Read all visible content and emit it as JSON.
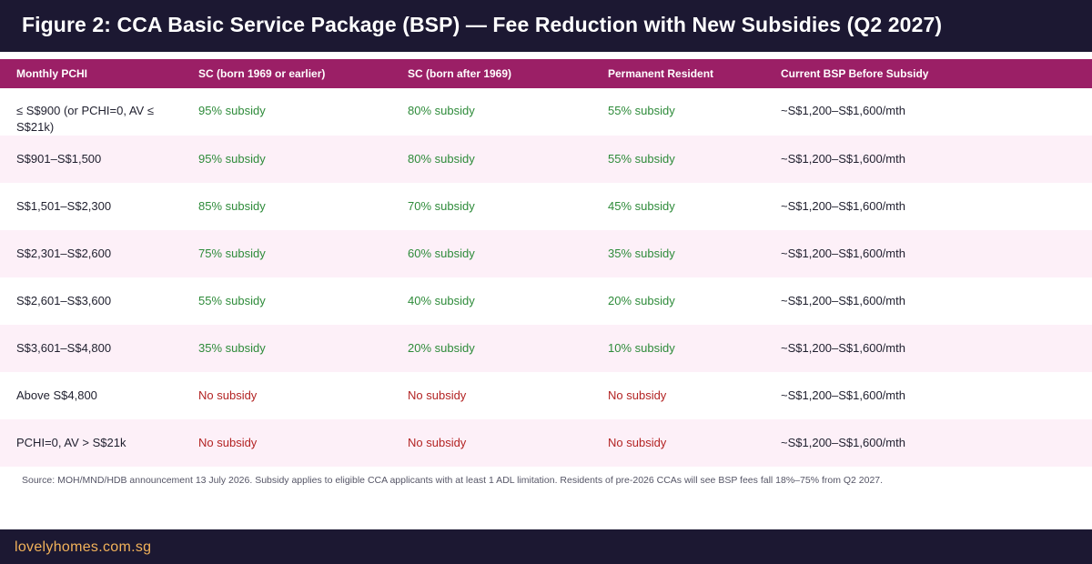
{
  "header": {
    "title": "Figure 2: CCA Basic Service Package (BSP) — Fee Reduction with New Subsidies (Q2 2027)"
  },
  "table": {
    "columns": [
      "Monthly PCHI",
      "SC (born 1969 or earlier)",
      "SC (born after 1969)",
      "Permanent Resident",
      "Current BSP Before Subsidy"
    ],
    "rows": [
      [
        "≤ S$900 (or PCHI=0, AV ≤ S$21k)",
        "95% subsidy",
        "80% subsidy",
        "55% subsidy",
        "~S$1,200–S$1,600/mth"
      ],
      [
        "S$901–S$1,500",
        "95% subsidy",
        "80% subsidy",
        "55% subsidy",
        "~S$1,200–S$1,600/mth"
      ],
      [
        "S$1,501–S$2,300",
        "85% subsidy",
        "70% subsidy",
        "45% subsidy",
        "~S$1,200–S$1,600/mth"
      ],
      [
        "S$2,301–S$2,600",
        "75% subsidy",
        "60% subsidy",
        "35% subsidy",
        "~S$1,200–S$1,600/mth"
      ],
      [
        "S$2,601–S$3,600",
        "55% subsidy",
        "40% subsidy",
        "20% subsidy",
        "~S$1,200–S$1,600/mth"
      ],
      [
        "S$3,601–S$4,800",
        "35% subsidy",
        "20% subsidy",
        "10% subsidy",
        "~S$1,200–S$1,600/mth"
      ],
      [
        "Above S$4,800",
        "No subsidy",
        "No subsidy",
        "No subsidy",
        "~S$1,200–S$1,600/mth"
      ],
      [
        "PCHI=0, AV > S$21k",
        "No subsidy",
        "No subsidy",
        "No subsidy",
        "~S$1,200–S$1,600/mth"
      ]
    ]
  },
  "source_note": "Source: MOH/MND/HDB announcement 13 July 2026. Subsidy applies to eligible CCA applicants with at least 1 ADL limitation. Residents of pre-2026 CCAs will see BSP fees fall 18%–75% from Q2 2027.",
  "footer": {
    "brand": "lovelyhomes.com.sg"
  },
  "colors": {
    "header_bg": "#1c1832",
    "table_header_bg": "#9b1f66",
    "alt_row_bg": "#fdf0f8",
    "subsidy_green": "#2e8b3a",
    "no_subsidy_red": "#b32424",
    "brand_orange": "#f2b25a"
  }
}
